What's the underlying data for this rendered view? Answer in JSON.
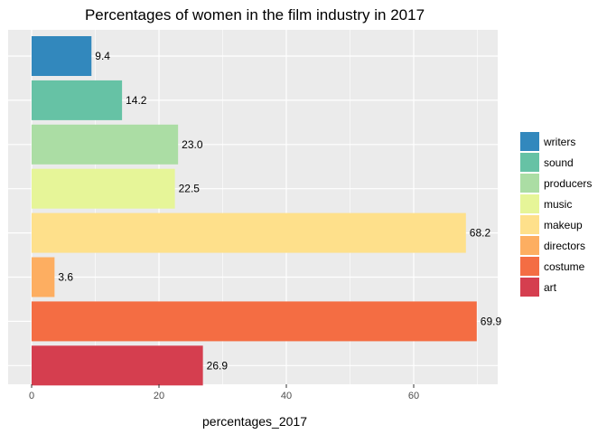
{
  "chart_data": {
    "type": "bar",
    "orientation": "horizontal",
    "title": "Percentages of women in the film industry in 2017",
    "xlabel": "percentages_2017",
    "ylabel": "",
    "xlim": [
      0,
      73
    ],
    "x_ticks": [
      0,
      20,
      40,
      60
    ],
    "grid": true,
    "legend_position": "right",
    "categories": [
      "writers",
      "sound",
      "producers",
      "music",
      "makeup",
      "directors",
      "costume",
      "art"
    ],
    "values": [
      9.4,
      14.2,
      23.0,
      22.5,
      68.2,
      3.6,
      69.9,
      26.9
    ],
    "labels": [
      "9.4",
      "14.2",
      "23.0",
      "22.5",
      "68.2",
      "3.6",
      "69.9",
      "26.9"
    ],
    "colors": [
      "#3288BD",
      "#66C2A5",
      "#ABDDA4",
      "#E6F598",
      "#FEE08B",
      "#FDAE61",
      "#F46D43",
      "#D53E4F"
    ],
    "panel_background": "#EBEBEB",
    "grid_color": "#FFFFFF"
  }
}
